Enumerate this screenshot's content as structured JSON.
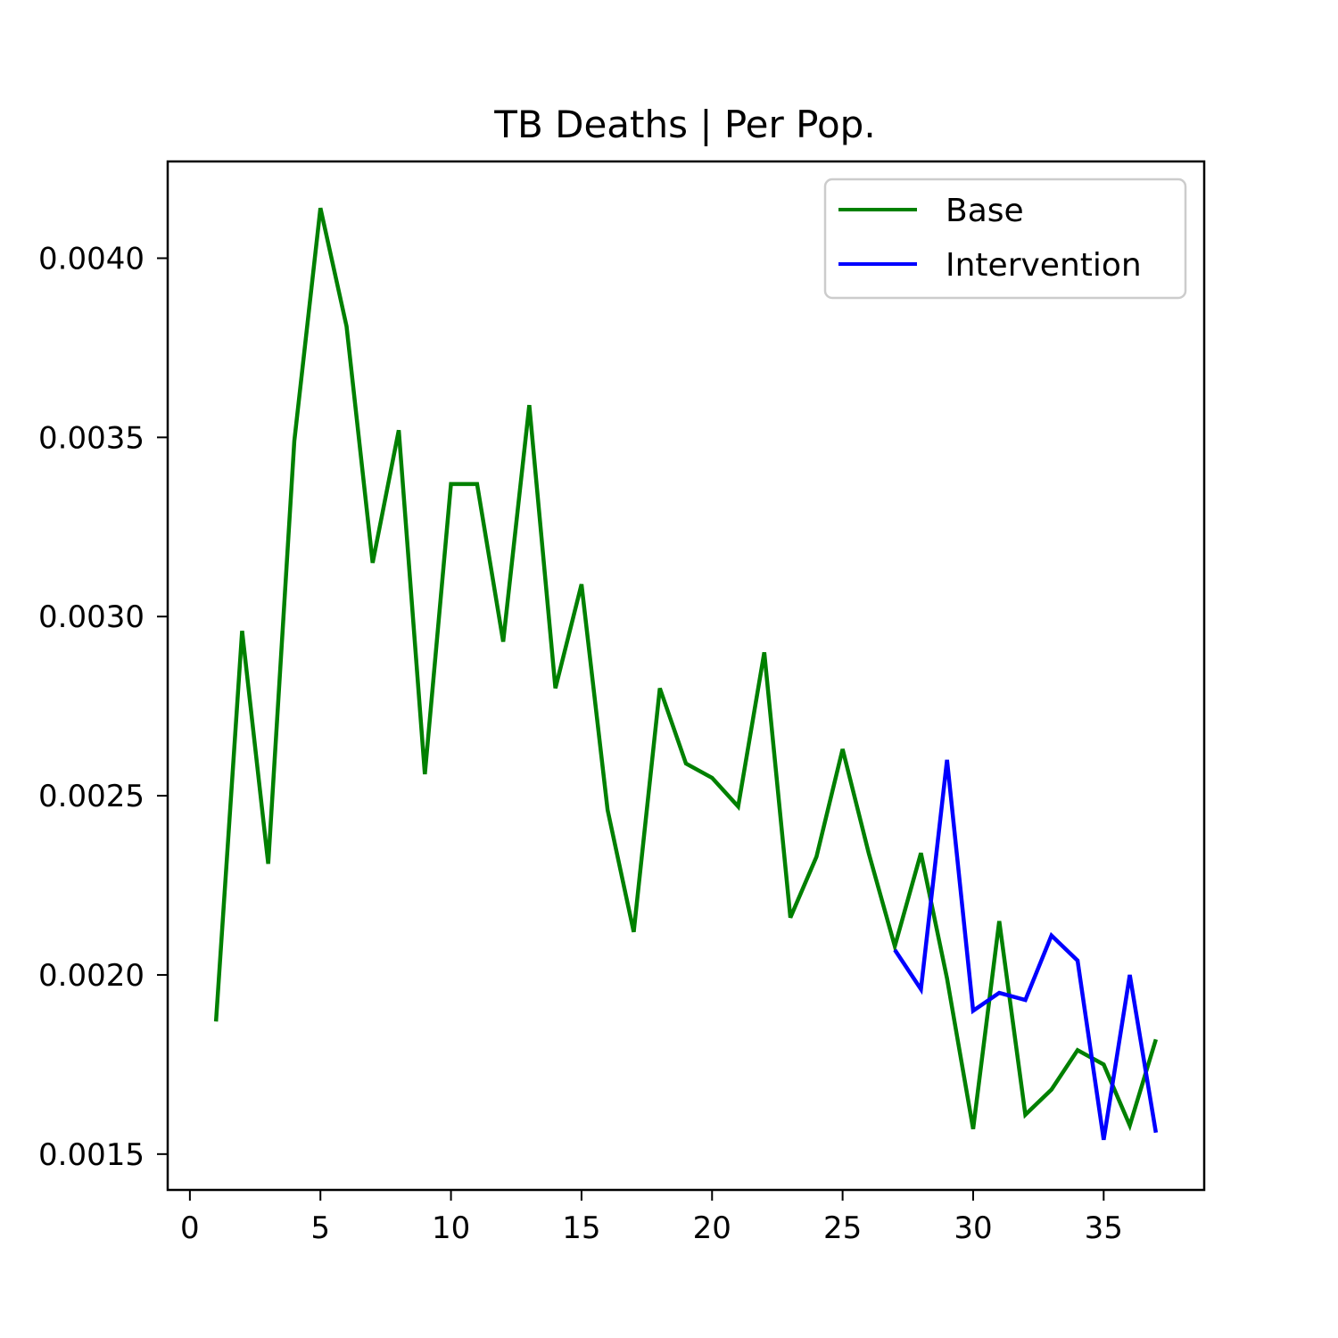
{
  "chart_data": {
    "type": "line",
    "title": "TB Deaths | Per Pop.",
    "xlabel": "",
    "ylabel": "",
    "xlim": [
      -0.85,
      38.85
    ],
    "ylim": [
      0.0014,
      0.00427
    ],
    "xticks": [
      0,
      5,
      10,
      15,
      20,
      25,
      30,
      35
    ],
    "yticks": [
      0.0015,
      0.002,
      0.0025,
      0.003,
      0.0035,
      0.004
    ],
    "ytick_labels": [
      "0.0015",
      "0.0020",
      "0.0025",
      "0.0030",
      "0.0035",
      "0.0040"
    ],
    "grid": false,
    "legend_position": "top-right",
    "x": [
      1,
      2,
      3,
      4,
      5,
      6,
      7,
      8,
      9,
      10,
      11,
      12,
      13,
      14,
      15,
      16,
      17,
      18,
      19,
      20,
      21,
      22,
      23,
      24,
      25,
      26,
      27,
      28,
      29,
      30,
      31,
      32,
      33,
      34,
      35,
      36,
      37
    ],
    "series": [
      {
        "name": "Base",
        "color": "#008000",
        "values": [
          0.00187,
          0.00296,
          0.00231,
          0.00349,
          0.00414,
          0.00381,
          0.00315,
          0.00352,
          0.00256,
          0.00337,
          0.00337,
          0.00293,
          0.00359,
          0.0028,
          0.00309,
          0.00246,
          0.00212,
          0.0028,
          0.00259,
          0.00255,
          0.00247,
          0.0029,
          0.00216,
          0.00233,
          0.00263,
          0.00234,
          0.00208,
          0.00234,
          0.00199,
          0.00157,
          0.00215,
          0.00161,
          0.00168,
          0.00179,
          0.00175,
          0.00158,
          0.00182
        ]
      },
      {
        "name": "Intervention",
        "color": "#0000ff",
        "values": [
          null,
          null,
          null,
          null,
          null,
          null,
          null,
          null,
          null,
          null,
          null,
          null,
          null,
          null,
          null,
          null,
          null,
          null,
          null,
          null,
          null,
          null,
          null,
          null,
          null,
          null,
          0.00207,
          0.00196,
          0.0026,
          0.0019,
          0.00195,
          0.00193,
          0.00211,
          0.00204,
          0.00154,
          0.002,
          0.00156
        ]
      }
    ]
  }
}
